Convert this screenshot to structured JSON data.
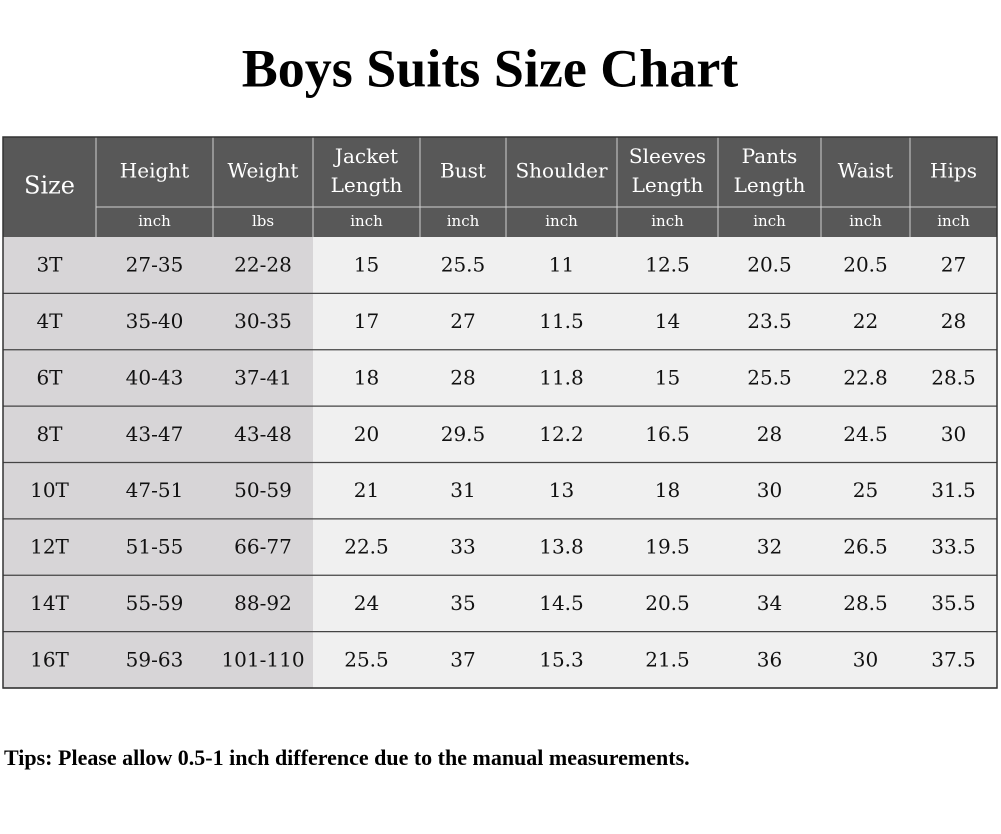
{
  "title": "Boys Suits Size Chart",
  "table": {
    "columns": [
      {
        "name": [
          "Size"
        ]
      },
      {
        "name": [
          "Height"
        ],
        "unit": "inch"
      },
      {
        "name": [
          "Weight"
        ],
        "unit": "lbs"
      },
      {
        "name": [
          "Jacket",
          "Length"
        ],
        "unit": "inch"
      },
      {
        "name": [
          "Bust"
        ],
        "unit": "inch"
      },
      {
        "name": [
          "Shoulder"
        ],
        "unit": "inch"
      },
      {
        "name": [
          "Sleeves",
          "Length"
        ],
        "unit": "inch"
      },
      {
        "name": [
          "Pants",
          "Length"
        ],
        "unit": "inch"
      },
      {
        "name": [
          "Waist"
        ],
        "unit": "inch"
      },
      {
        "name": [
          "Hips"
        ],
        "unit": "inch"
      }
    ],
    "rows": [
      [
        "3T",
        "27-35",
        "22-28",
        "15",
        "25.5",
        "11",
        "12.5",
        "20.5",
        "20.5",
        "27"
      ],
      [
        "4T",
        "35-40",
        "30-35",
        "17",
        "27",
        "11.5",
        "14",
        "23.5",
        "22",
        "28"
      ],
      [
        "6T",
        "40-43",
        "37-41",
        "18",
        "28",
        "11.8",
        "15",
        "25.5",
        "22.8",
        "28.5"
      ],
      [
        "8T",
        "43-47",
        "43-48",
        "20",
        "29.5",
        "12.2",
        "16.5",
        "28",
        "24.5",
        "30"
      ],
      [
        "10T",
        "47-51",
        "50-59",
        "21",
        "31",
        "13",
        "18",
        "30",
        "25",
        "31.5"
      ],
      [
        "12T",
        "51-55",
        "66-77",
        "22.5",
        "33",
        "13.8",
        "19.5",
        "32",
        "26.5",
        "33.5"
      ],
      [
        "14T",
        "55-59",
        "88-92",
        "24",
        "35",
        "14.5",
        "20.5",
        "34",
        "28.5",
        "35.5"
      ],
      [
        "16T",
        "59-63",
        "101-110",
        "25.5",
        "37",
        "15.3",
        "21.5",
        "36",
        "30",
        "37.5"
      ]
    ]
  },
  "tips": "Tips: Please allow 0.5-1 inch difference due to the manual measurements."
}
